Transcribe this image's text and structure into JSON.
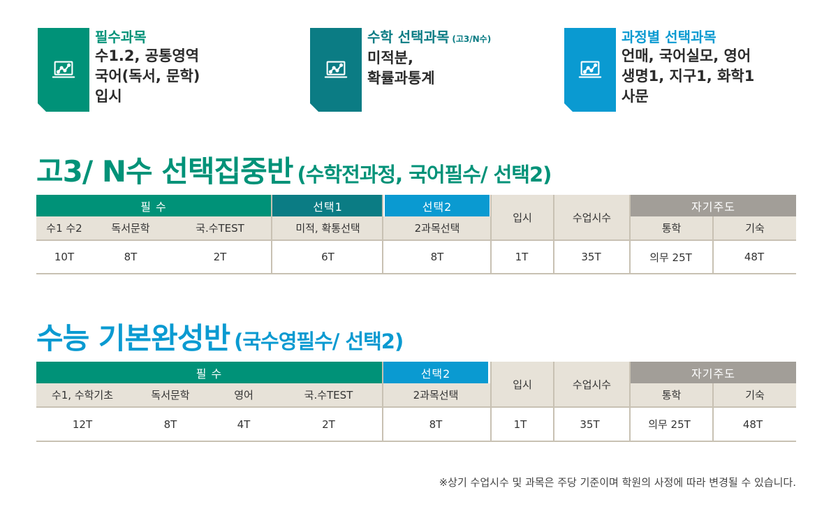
{
  "cards": [
    {
      "title": "필수과목",
      "note": "",
      "lines": [
        "수1.2, 공통영역",
        "국어(독서, 문학)",
        "입시"
      ],
      "color": "#009278",
      "icon": "laptop-chart-icon"
    },
    {
      "title": "수학 선택과목",
      "note": "(고3/N수)",
      "lines": [
        "미적분,",
        "확률과통계"
      ],
      "color": "#0b7c84",
      "icon": "laptop-chart-icon"
    },
    {
      "title": "과정별 선택과목",
      "note": "",
      "lines": [
        "언매, 국어실모, 영어",
        "생명1, 지구1, 화학1",
        "사문"
      ],
      "color": "#0a9ad1",
      "icon": "laptop-chart-icon"
    }
  ],
  "section1": {
    "title": "고3/ N수 선택집중반",
    "subtitle": "(수학전과정, 국어필수/ 선택2)",
    "color": "#009278",
    "groups": {
      "required": "필 수",
      "elective1": "선택1",
      "elective2": "선택2",
      "entrance": "입시",
      "hours": "수업시수",
      "selfstudy": "자기주도"
    },
    "subs": [
      "수1 수2",
      "독서문학",
      "국.수TEST",
      "미적, 확통선택",
      "2과목선택",
      "통학",
      "기숙"
    ],
    "values": [
      "10T",
      "8T",
      "2T",
      "6T",
      "8T",
      "1T",
      "35T",
      "의무 25T",
      "48T"
    ]
  },
  "section2": {
    "title": "수능 기본완성반",
    "subtitle": "(국수영필수/ 선택2)",
    "color": "#0a9ad1",
    "groups": {
      "required": "필 수",
      "elective2": "선택2",
      "entrance": "입시",
      "hours": "수업시수",
      "selfstudy": "자기주도"
    },
    "subs": [
      "수1, 수학기초",
      "독서문학",
      "영어",
      "국.수TEST",
      "2과목선택",
      "통학",
      "기숙"
    ],
    "values": [
      "12T",
      "8T",
      "4T",
      "2T",
      "8T",
      "1T",
      "35T",
      "의무 25T",
      "48T"
    ]
  },
  "colors": {
    "required": "#009278",
    "elective1": "#0b7c84",
    "elective2": "#0a9ad1",
    "selfstudy": "#a29e98",
    "subheader": "#e7e2d8"
  },
  "footnote": "※상기 수업시수 및 과목은 주당 기준이며 학원의 사정에  따라 변경될 수 있습니다."
}
